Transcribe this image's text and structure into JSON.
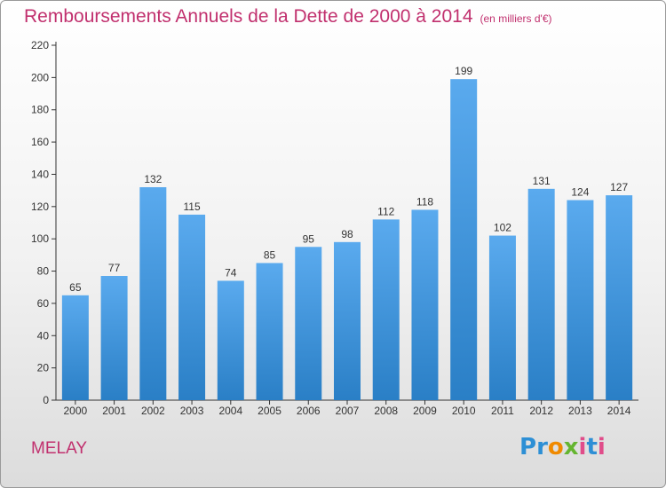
{
  "header": {
    "title": "Remboursements Annuels de la Dette de 2000 à 2014",
    "unit": "(en milliers d'€)"
  },
  "footer": {
    "place": "MELAY",
    "logo": "Proxiti"
  },
  "colors": {
    "title": "#c1306e",
    "bar_top": "#5aaaee",
    "bar_bottom": "#2a7fc6",
    "axis": "#333333"
  },
  "chart_data": {
    "type": "bar",
    "title": "Remboursements Annuels de la Dette de 2000 à 2014",
    "subtitle": "(en milliers d'€)",
    "xlabel": "",
    "ylabel": "",
    "categories": [
      "2000",
      "2001",
      "2002",
      "2003",
      "2004",
      "2005",
      "2006",
      "2007",
      "2008",
      "2009",
      "2010",
      "2011",
      "2012",
      "2013",
      "2014"
    ],
    "values": [
      65,
      77,
      132,
      115,
      74,
      85,
      95,
      98,
      112,
      118,
      199,
      102,
      131,
      124,
      127
    ],
    "ylim": [
      0,
      220
    ],
    "yticks": [
      0,
      20,
      40,
      60,
      80,
      100,
      120,
      140,
      160,
      180,
      200,
      220
    ],
    "grid": false,
    "legend": "none",
    "data_labels": true
  }
}
